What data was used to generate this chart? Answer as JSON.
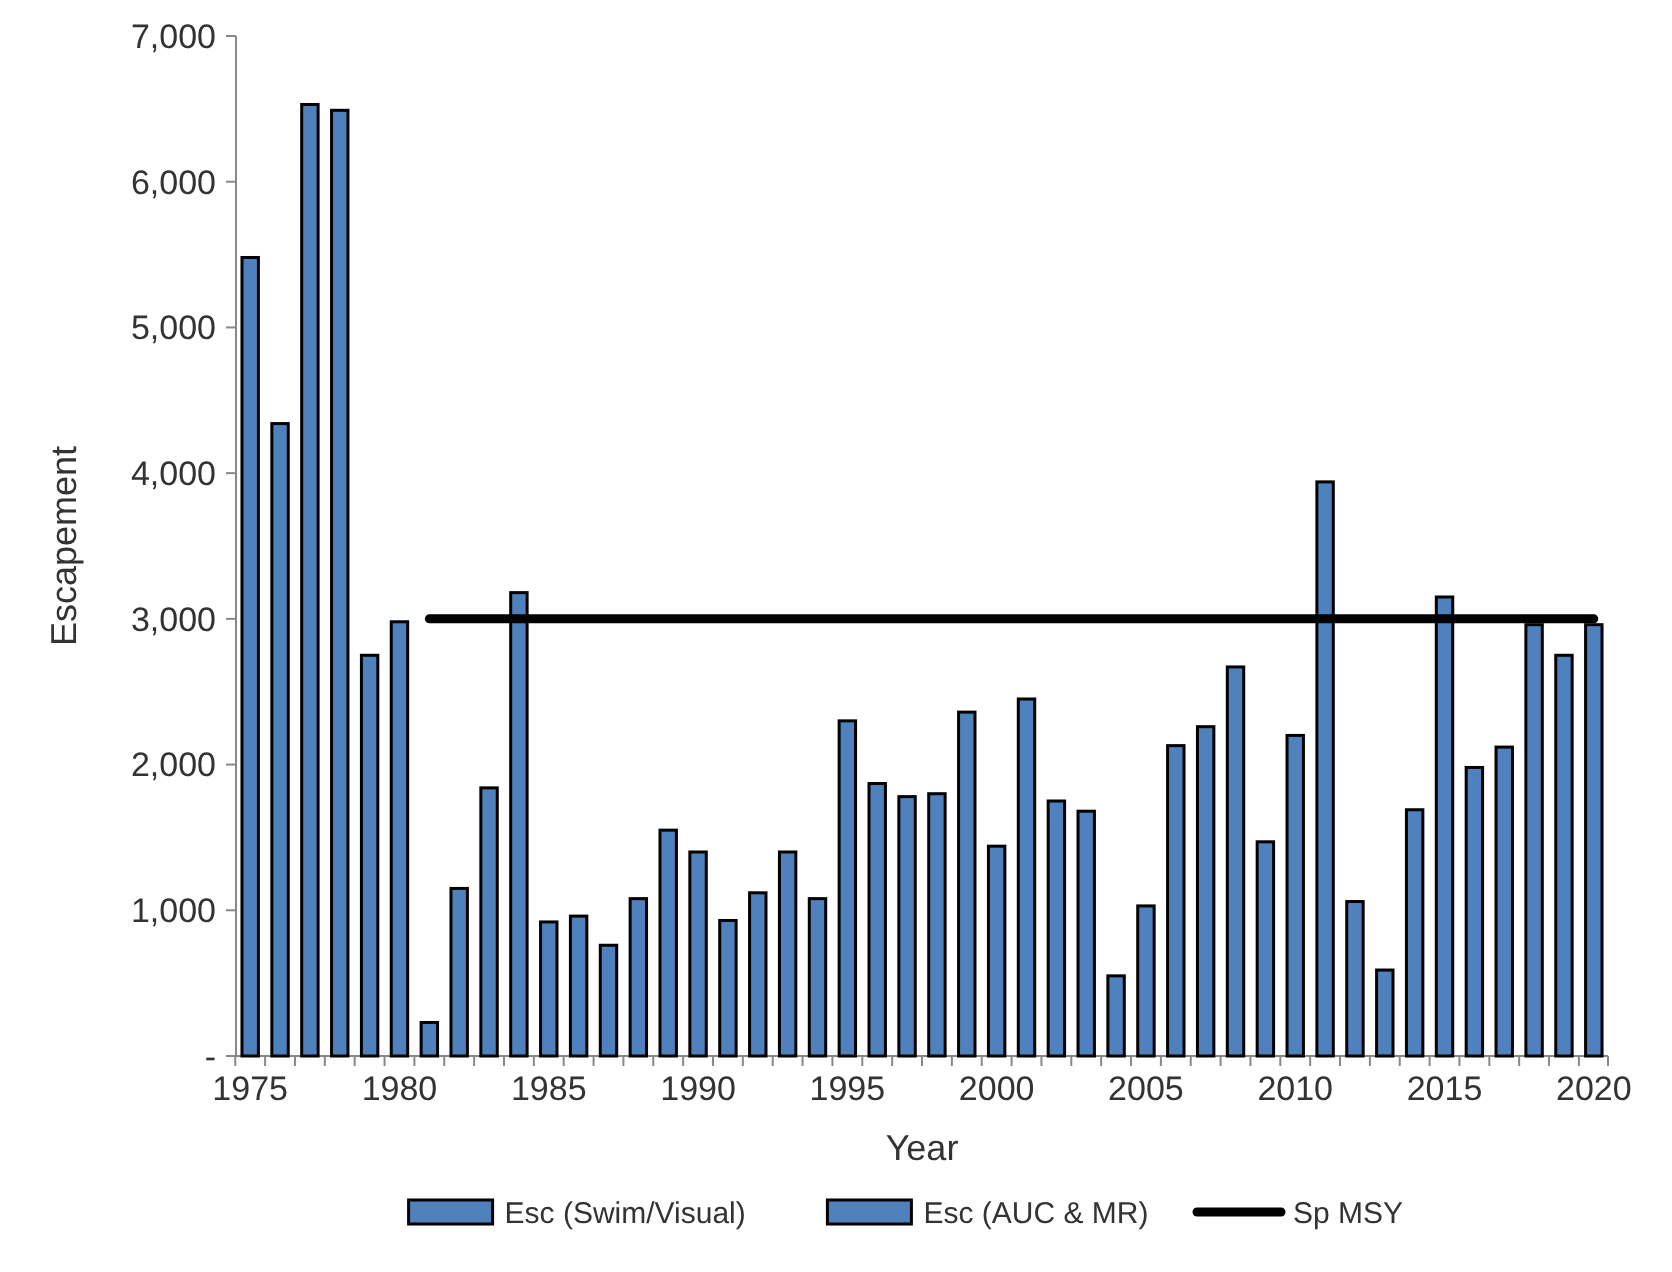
{
  "chart_data": {
    "type": "bar",
    "xlabel": "Year",
    "ylabel": "Escapement",
    "categories": [
      "1975",
      null,
      null,
      null,
      null,
      "1980",
      null,
      null,
      null,
      null,
      "1985",
      null,
      null,
      null,
      null,
      "1990",
      null,
      null,
      null,
      null,
      "1995",
      null,
      null,
      null,
      null,
      "2000",
      null,
      null,
      null,
      null,
      "2005",
      null,
      null,
      null,
      null,
      "2010",
      null,
      null,
      null,
      null,
      "2015",
      null,
      null,
      null,
      null,
      "2020"
    ],
    "series": [
      {
        "name": "Esc (Swim/Visual)",
        "color": "#4f81bd",
        "values": [
          5480,
          4340,
          6530,
          6490,
          2750,
          2980,
          230,
          1150,
          1840,
          3180,
          920,
          960,
          760,
          1080,
          1550,
          1400,
          930,
          1120,
          1400,
          1080,
          null,
          null,
          null,
          null,
          null,
          null,
          null,
          null,
          null,
          null,
          null,
          null,
          null,
          null,
          null,
          null,
          null,
          null,
          null,
          null,
          null,
          null,
          null,
          null,
          null,
          null
        ]
      },
      {
        "name": "Esc (AUC & MR)",
        "color": "#4f81bd",
        "values": [
          null,
          null,
          null,
          null,
          null,
          null,
          null,
          null,
          null,
          null,
          null,
          null,
          null,
          null,
          null,
          null,
          null,
          null,
          null,
          null,
          2300,
          1870,
          1780,
          1800,
          2360,
          1440,
          2450,
          1750,
          1680,
          550,
          1030,
          2130,
          2260,
          2670,
          1470,
          2200,
          3940,
          1060,
          590,
          1690,
          3150,
          1980,
          2120,
          2960,
          2750,
          2960
        ]
      },
      {
        "name": "Sp MSY",
        "type": "line",
        "color": "#000000",
        "values": [
          null,
          null,
          null,
          null,
          null,
          null,
          3000,
          3000,
          3000,
          3000,
          3000,
          3000,
          3000,
          3000,
          3000,
          3000,
          3000,
          3000,
          3000,
          3000,
          3000,
          3000,
          3000,
          3000,
          3000,
          3000,
          3000,
          3000,
          3000,
          3000,
          3000,
          3000,
          3000,
          3000,
          3000,
          3000,
          3000,
          3000,
          3000,
          3000,
          3000,
          3000,
          3000,
          3000,
          3000,
          3000
        ]
      }
    ],
    "ylim": [
      0,
      7000
    ],
    "yticks": [
      {
        "value": 0,
        "label": "-"
      },
      {
        "value": 1000,
        "label": "1,000"
      },
      {
        "value": 2000,
        "label": "2,000"
      },
      {
        "value": 3000,
        "label": "3,000"
      },
      {
        "value": 4000,
        "label": "4,000"
      },
      {
        "value": 5000,
        "label": "5,000"
      },
      {
        "value": 6000,
        "label": "6,000"
      },
      {
        "value": 7000,
        "label": "7,000"
      }
    ],
    "grid": false,
    "legend": "bottom"
  }
}
